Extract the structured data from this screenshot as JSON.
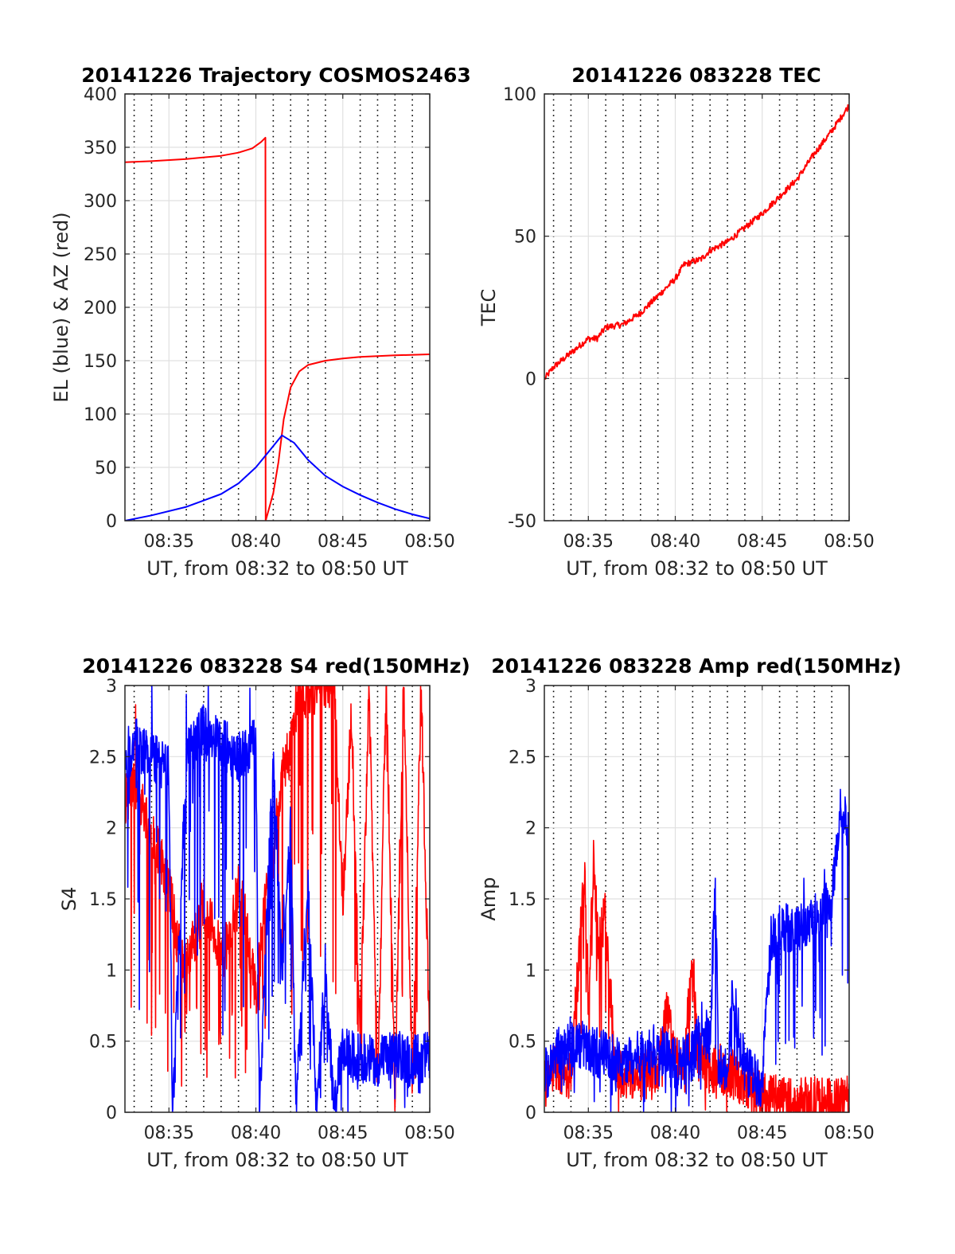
{
  "figure": {
    "colors": {
      "az": "#ff0000",
      "el": "#0000ff",
      "tec": "#ff0000",
      "red": "#ff0000",
      "blue": "#0000ff",
      "grid": "#e0e0e0",
      "axis": "#262626"
    }
  },
  "chart_data": [
    {
      "id": "trajectory",
      "type": "line",
      "title": "20141226 Trajectory COSMOS2463",
      "xlabel": "UT, from 08:32 to 08:50 UT",
      "ylabel": "EL (blue) & AZ (red)",
      "x_unit": "minutes after 08:00 UT",
      "xlim": [
        32.47,
        50
      ],
      "ylim": [
        0,
        400
      ],
      "xticks": [
        35,
        40,
        45,
        50
      ],
      "xtick_labels": [
        "08:35",
        "08:40",
        "08:45",
        "08:50"
      ],
      "yticks": [
        0,
        50,
        100,
        150,
        200,
        250,
        300,
        350,
        400
      ],
      "ytick_labels": [
        "0",
        "50",
        "100",
        "150",
        "200",
        "250",
        "300",
        "350",
        "400"
      ],
      "grid": true,
      "series": [
        {
          "name": "AZ",
          "color": "#ff0000",
          "x": [
            32.47,
            34,
            36,
            38,
            39,
            39.8,
            40.3,
            40.55,
            40.56,
            40.7,
            41,
            41.3,
            41.6,
            42,
            42.5,
            43,
            44,
            45,
            46,
            48,
            50
          ],
          "y": [
            336,
            337,
            339,
            342,
            345,
            349,
            355,
            359,
            0,
            8,
            26,
            55,
            95,
            125,
            140,
            146,
            150,
            152,
            153.5,
            155,
            156
          ]
        },
        {
          "name": "EL",
          "color": "#0000ff",
          "x": [
            32.47,
            34,
            36,
            38,
            39,
            40,
            40.8,
            41.5,
            42.2,
            43,
            44,
            45,
            46,
            47,
            48,
            49,
            50
          ],
          "y": [
            0,
            5,
            13,
            25,
            35,
            50,
            66,
            80,
            73,
            57,
            42,
            32,
            24,
            17,
            11,
            6,
            2
          ]
        }
      ]
    },
    {
      "id": "tec",
      "type": "line",
      "title": "20141226 083228 TEC",
      "xlabel": "UT, from 08:32 to 08:50 UT",
      "ylabel": "TEC",
      "x_unit": "minutes after 08:00 UT",
      "xlim": [
        32.47,
        50
      ],
      "ylim": [
        -50,
        100
      ],
      "xticks": [
        35,
        40,
        45,
        50
      ],
      "xtick_labels": [
        "08:35",
        "08:40",
        "08:45",
        "08:50"
      ],
      "yticks": [
        -50,
        0,
        50,
        100
      ],
      "ytick_labels": [
        "-50",
        "0",
        "50",
        "100"
      ],
      "grid": true,
      "series": [
        {
          "name": "TEC",
          "color": "#ff0000",
          "x": [
            32.5,
            33,
            34,
            35,
            35.5,
            36,
            37,
            38,
            39,
            40,
            40.5,
            41,
            41.5,
            42,
            43,
            44,
            45,
            46,
            47,
            48,
            49,
            50
          ],
          "y": [
            0,
            4,
            9,
            14,
            14,
            18,
            19,
            23,
            29,
            35,
            40,
            41,
            42,
            45,
            48,
            53,
            58,
            64,
            70,
            79,
            87,
            96
          ]
        }
      ]
    },
    {
      "id": "s4",
      "type": "line",
      "title": "20141226 083228 S4 red(150MHz)",
      "xlabel": "UT, from 08:32 to 08:50 UT",
      "ylabel": "S4",
      "x_unit": "minutes after 08:00 UT",
      "xlim": [
        32.47,
        50
      ],
      "ylim": [
        0,
        3
      ],
      "xticks": [
        35,
        40,
        45,
        50
      ],
      "xtick_labels": [
        "08:35",
        "08:40",
        "08:45",
        "08:50"
      ],
      "yticks": [
        0,
        0.5,
        1,
        1.5,
        2,
        2.5,
        3
      ],
      "ytick_labels": [
        "0",
        "0.5",
        "1",
        "1.5",
        "2",
        "2.5",
        "3"
      ],
      "grid": true,
      "series": [
        {
          "color": "#ff0000",
          "sampled": true,
          "x": [
            32.5,
            33,
            34,
            35,
            35.5,
            36,
            36.5,
            37,
            37.5,
            38,
            38.5,
            39,
            39.5,
            40,
            40.5,
            41,
            41.5,
            42,
            42.5,
            43,
            43.5,
            44,
            44.5,
            45,
            45.5,
            46,
            46.5,
            47,
            47.5,
            48,
            48.5,
            49,
            49.5,
            50
          ],
          "y": [
            2.2,
            2.3,
            2.0,
            1.6,
            1.2,
            1.0,
            1.3,
            1.5,
            1.3,
            1.1,
            1.2,
            1.6,
            1.3,
            0.8,
            1.5,
            1.8,
            2.4,
            2.6,
            3.0,
            2.9,
            3.0,
            3.0,
            3.0,
            1.5,
            2.8,
            0.5,
            3.0,
            0.2,
            3.0,
            0.1,
            3.0,
            0.2,
            3.0,
            0.5
          ]
        },
        {
          "color": "#0000ff",
          "sampled": true,
          "x": [
            32.5,
            33,
            34,
            35,
            35.2,
            36,
            37,
            38,
            39,
            40,
            40.2,
            41,
            41.5,
            42,
            42.3,
            43,
            43.5,
            44,
            44.5,
            44.8,
            45,
            46,
            47,
            48,
            49,
            50
          ],
          "y": [
            2.4,
            2.6,
            2.5,
            2.4,
            0,
            2.5,
            2.7,
            2.6,
            2.5,
            2.6,
            0,
            2.5,
            1.0,
            2.0,
            0,
            1.6,
            0,
            1.0,
            0,
            0.3,
            0.42,
            0.38,
            0.36,
            0.4,
            0.37,
            0.4
          ]
        }
      ]
    },
    {
      "id": "amp",
      "type": "line",
      "title": "20141226 083228 Amp red(150MHz)",
      "xlabel": "UT, from 08:32 to 08:50 UT",
      "ylabel": "Amp",
      "x_unit": "minutes after 08:00 UT",
      "xlim": [
        32.47,
        50
      ],
      "ylim": [
        0,
        3
      ],
      "xticks": [
        35,
        40,
        45,
        50
      ],
      "xtick_labels": [
        "08:35",
        "08:40",
        "08:45",
        "08:50"
      ],
      "yticks": [
        0,
        0.5,
        1,
        1.5,
        2,
        2.5,
        3
      ],
      "ytick_labels": [
        "0",
        "0.5",
        "1",
        "1.5",
        "2",
        "2.5",
        "3"
      ],
      "grid": true,
      "series": [
        {
          "color": "#ff0000",
          "sampled": true,
          "x": [
            32.5,
            33,
            34,
            34.8,
            35,
            35.3,
            35.6,
            36,
            36.5,
            37,
            38,
            39,
            39.5,
            40,
            40.5,
            41,
            41.3,
            42,
            43,
            44,
            45,
            45.5,
            46,
            47,
            48,
            49,
            50
          ],
          "y": [
            0.2,
            0.3,
            0.25,
            1.7,
            0.8,
            1.75,
            1.2,
            1.4,
            0.4,
            0.25,
            0.25,
            0.3,
            0.7,
            0.4,
            0.3,
            1.1,
            0.4,
            0.3,
            0.3,
            0.2,
            0.1,
            0.08,
            0.1,
            0.06,
            0.08,
            0.06,
            0.08
          ]
        },
        {
          "color": "#0000ff",
          "sampled": true,
          "x": [
            32.5,
            33,
            34,
            35,
            36,
            37,
            38,
            39,
            40,
            41,
            41.5,
            42,
            42.3,
            42.5,
            43,
            43.3,
            44,
            45,
            45.5,
            46,
            47,
            48,
            49,
            49.5,
            50
          ],
          "y": [
            0.3,
            0.4,
            0.5,
            0.45,
            0.4,
            0.35,
            0.4,
            0.45,
            0.35,
            0.4,
            0.6,
            0.5,
            1.6,
            0.3,
            0.35,
            0.85,
            0.3,
            0.2,
            1.2,
            1.3,
            1.3,
            1.4,
            1.5,
            2.2,
            1.9
          ]
        }
      ]
    }
  ]
}
